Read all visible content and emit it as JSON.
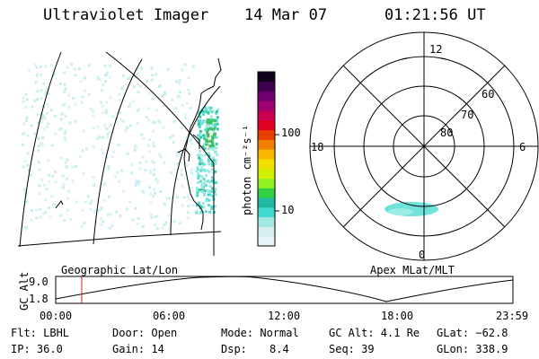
{
  "header": {
    "title": "Ultraviolet Imager",
    "date": "14 Mar 07",
    "time": "01:21:56 UT"
  },
  "colorbar": {
    "unit_label": "photon cm⁻²s⁻¹",
    "ticks": [
      "100",
      "10"
    ],
    "scale": "log",
    "colors": [
      "#e8f4f8",
      "#d4eef0",
      "#a0e8e0",
      "#40d8d0",
      "#20b8a0",
      "#30d040",
      "#90f020",
      "#d0f000",
      "#f0e000",
      "#f8b800",
      "#f08000",
      "#e84000",
      "#e00020",
      "#c80050",
      "#a00070",
      "#700070",
      "#400050",
      "#100020"
    ]
  },
  "map_left": {
    "label": "Geographic Lat/Lon"
  },
  "polar_right": {
    "label": "Apex MLat/MLT",
    "mlt_labels": [
      "12",
      "18",
      "6",
      "0"
    ],
    "lat_labels": [
      "60",
      "70",
      "80"
    ]
  },
  "altitude_plot": {
    "ylabel": "GC Alt",
    "yticks": [
      "9.0",
      "1.8"
    ],
    "xticks": [
      "00:00",
      "06:00",
      "12:00",
      "18:00",
      "23:59"
    ],
    "current_time_marker_hours": 1.365
  },
  "info": {
    "flt": "Flt: LBHL",
    "door": "Door: Open",
    "mode": "Mode: Normal",
    "gc_alt": "GC Alt: 4.1 Re",
    "glat": "GLat: −62.8",
    "ip": "IP: 36.0",
    "gain": "Gain: 14",
    "dsp_label": "Dsp:",
    "dsp_value": "8.4",
    "seq": "Seq: 39",
    "glon": "GLon: 338.9"
  }
}
